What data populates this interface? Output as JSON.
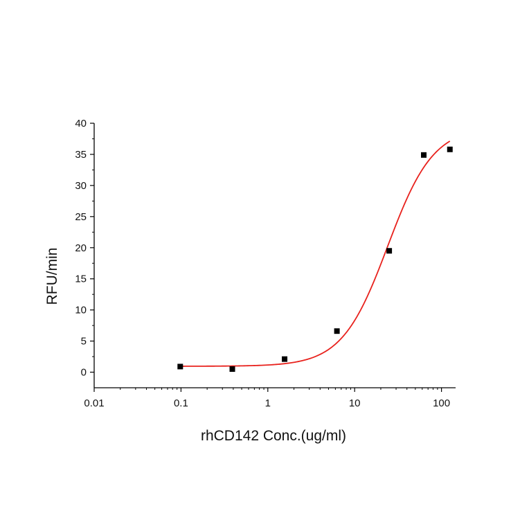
{
  "chart_data": {
    "type": "scatter",
    "title": "",
    "xlabel": "rhCD142 Conc.(ug/ml)",
    "ylabel": "RFU/min",
    "x_scale": "log",
    "xlim": [
      0.01,
      130
    ],
    "ylim": [
      -2.5,
      40
    ],
    "x_ticks": [
      0.01,
      0.1,
      1,
      10,
      100
    ],
    "x_tick_labels": [
      "0.01",
      "0.1",
      "1",
      "10",
      "100"
    ],
    "y_ticks": [
      0,
      5,
      10,
      15,
      20,
      25,
      30,
      35,
      40
    ],
    "y_tick_labels": [
      "0",
      "5",
      "10",
      "15",
      "20",
      "25",
      "30",
      "35",
      "40"
    ],
    "grid": false,
    "series": [
      {
        "type": "scatter",
        "marker": "square",
        "color": "#000000",
        "x": [
          0.098,
          0.39,
          1.56,
          6.25,
          25,
          62.5,
          125
        ],
        "y": [
          0.9,
          0.5,
          2.1,
          6.6,
          19.5,
          34.9,
          35.8
        ]
      },
      {
        "type": "fit-line",
        "color": "#e8211c",
        "model": "four-parameter logistic",
        "bottom": 0.95,
        "top": 39.5,
        "ec50": 24,
        "hill": 1.65,
        "x_range": [
          0.098,
          125
        ]
      }
    ]
  }
}
